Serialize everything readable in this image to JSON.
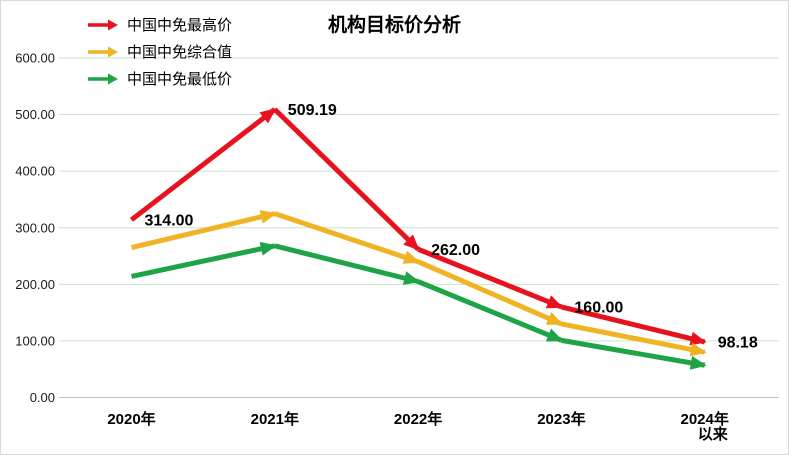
{
  "title": "机构目标价分析",
  "colors": {
    "red": "#e8121f",
    "yellow": "#f0b323",
    "green": "#1ea446",
    "gridline": "#c8e4c8",
    "axis_line": "#bfbfbf",
    "border": "#d9d9d9",
    "text": "#000000"
  },
  "chart_data": {
    "type": "line",
    "title": "机构目标价分析",
    "categories": [
      [
        "2020年"
      ],
      [
        "2021年"
      ],
      [
        "2022年"
      ],
      [
        "2023年"
      ],
      [
        "2024年",
        "以来"
      ]
    ],
    "y_ticks": [
      "600.00",
      "500.00",
      "400.00",
      "300.00",
      "200.00",
      "100.00",
      "0.00"
    ],
    "y_tick_values": [
      600,
      500,
      400,
      300,
      200,
      100,
      0
    ],
    "ylim": [
      0,
      600
    ],
    "grid": "horizontal",
    "legend_position": "top-left",
    "series": [
      {
        "name": "中国中免最高价",
        "color": "#e8121f",
        "values": [
          314.0,
          509.19,
          262.0,
          160.0,
          98.18
        ],
        "data_labels": [
          "314.00",
          "509.19",
          "262.00",
          "160.00",
          "98.18"
        ]
      },
      {
        "name": "中国中免综合值",
        "color": "#f0b323",
        "values": [
          265,
          325,
          240,
          130,
          80
        ],
        "data_labels": null
      },
      {
        "name": "中国中免最低价",
        "color": "#1ea446",
        "values": [
          214,
          268,
          205,
          101,
          57
        ],
        "data_labels": null
      }
    ]
  }
}
